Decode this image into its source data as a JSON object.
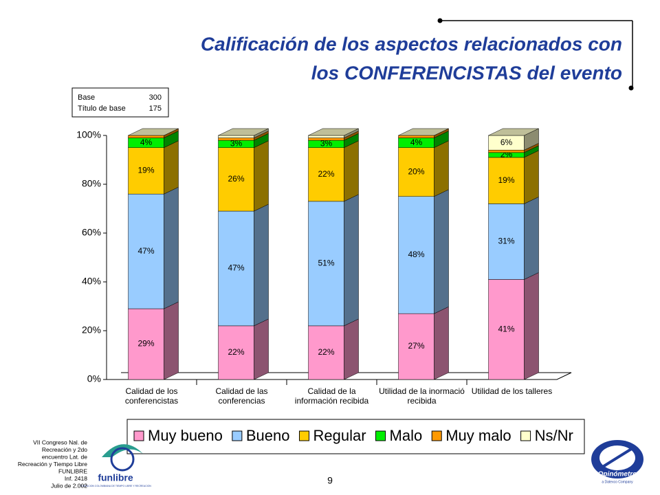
{
  "chart_data": {
    "type": "bar3d_stacked",
    "title": [
      "Calificación de los aspectos relacionados con",
      "los CONFERENCISTAS del evento"
    ],
    "categories": [
      "Calidad de los conferencistas",
      "Calidad de las conferencias",
      "Calidad de la información recibida",
      "Utilidad de la inormació recibida",
      "Utilidad de los talleres"
    ],
    "series": [
      {
        "name": "Muy bueno",
        "color": "#ff99cc",
        "values": [
          29,
          22,
          22,
          27,
          41
        ],
        "value_labels": [
          "29%",
          "22%",
          "22%",
          "27%",
          "41%"
        ]
      },
      {
        "name": "Bueno",
        "color": "#99ccff",
        "values": [
          47,
          47,
          51,
          48,
          31
        ],
        "value_labels": [
          "47%",
          "47%",
          "51%",
          "48%",
          "31%"
        ]
      },
      {
        "name": "Regular",
        "color": "#ffcc00",
        "values": [
          19,
          26,
          22,
          20,
          19
        ],
        "value_labels": [
          "19%",
          "26%",
          "22%",
          "20%",
          "19%"
        ]
      },
      {
        "name": "Malo",
        "color": "#00ee00",
        "values": [
          4,
          3,
          3,
          4,
          2
        ],
        "value_labels": [
          "4%",
          "3%",
          "3%",
          "4%",
          "2%"
        ]
      },
      {
        "name": "Muy malo",
        "color": "#ff9900",
        "values": [
          1,
          1,
          1,
          1,
          1
        ],
        "value_labels": [
          null,
          null,
          null,
          null,
          null
        ]
      },
      {
        "name": "Ns/Nr",
        "color": "#ffffcc",
        "values": [
          0,
          1,
          1,
          0,
          6
        ],
        "value_labels": [
          null,
          null,
          null,
          null,
          "6%"
        ]
      }
    ],
    "ylim": [
      0,
      100
    ],
    "yticks": [
      {
        "value": 0,
        "label": "0%"
      },
      {
        "value": 20,
        "label": "20%"
      },
      {
        "value": 40,
        "label": "40%"
      },
      {
        "value": 60,
        "label": "60%"
      },
      {
        "value": 80,
        "label": "80%"
      },
      {
        "value": 100,
        "label": "100%"
      }
    ],
    "legend": "bottom"
  },
  "base_box": {
    "rows": [
      [
        "Base",
        "300"
      ],
      [
        "Título de base",
        "175"
      ]
    ]
  },
  "footer": {
    "lines": [
      "VII Congreso Nal. de",
      "Recreación y 2do",
      "encuentro Lat. de",
      "Recreación y Tiempo Libre",
      "FUNLIBRE",
      "Inf. 2418",
      "Julio de 2.002"
    ],
    "page": "9"
  },
  "logos": {
    "left": "funlibre",
    "left_sub": "FUNDACION COLOMBIANA DE TIEMPO LIBRE Y RECREACION",
    "right": "Opinómetro",
    "right_sub": "a Datexco Company"
  }
}
